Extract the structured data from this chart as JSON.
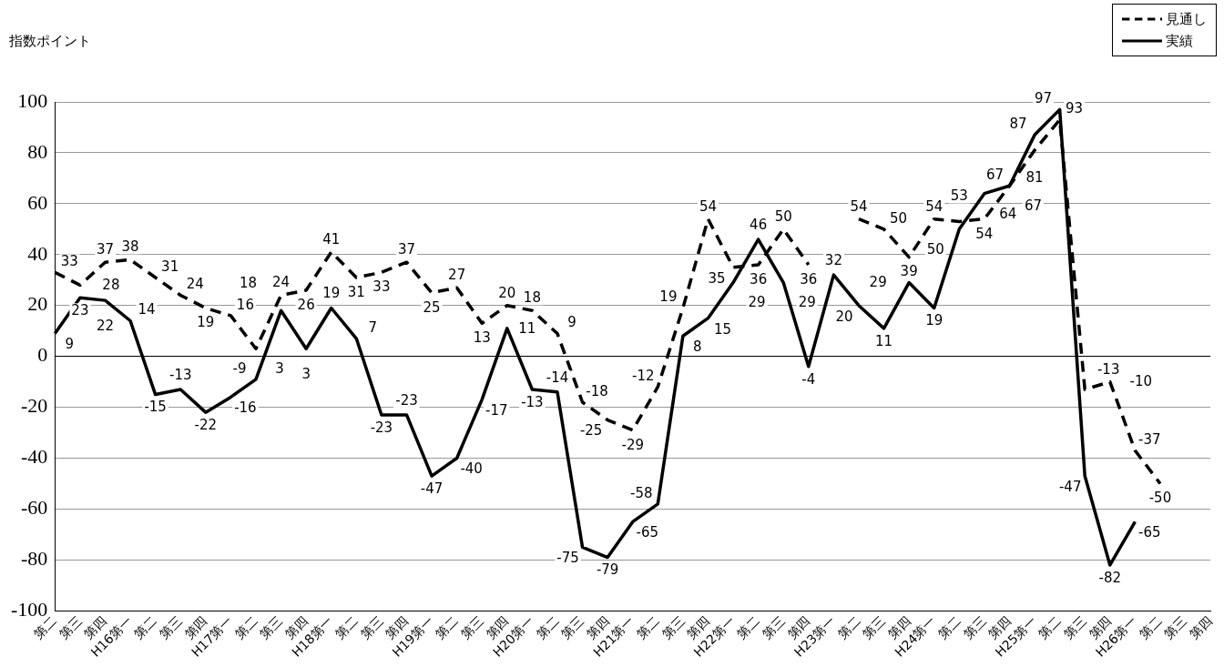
{
  "chart_data": {
    "type": "line",
    "ylabel": "指数ポイント",
    "categories": [
      "第二",
      "第三",
      "第四",
      "H16第一",
      "第二",
      "第三",
      "第四",
      "H17第一",
      "第二",
      "第三",
      "第四",
      "H18第一",
      "第二",
      "第三",
      "第四",
      "H19第一",
      "第二",
      "第三",
      "第四",
      "H20第一",
      "第二",
      "第三",
      "第四",
      "H21第一",
      "第二",
      "第三",
      "第四",
      "H22第一",
      "第二",
      "第三",
      "第四",
      "H23第一",
      "第二",
      "第三",
      "第四",
      "H24第一",
      "第二",
      "第三",
      "第四",
      "H25第一",
      "第二",
      "第三",
      "第四",
      "H26第一",
      "第二",
      "第三",
      "第四"
    ],
    "series": [
      {
        "name": "見通し",
        "color": "#000000",
        "line_style": "dashed",
        "values": [
          33,
          28,
          37,
          38,
          31,
          24,
          19,
          16,
          3,
          24,
          26,
          41,
          31,
          33,
          37,
          25,
          27,
          13,
          20,
          18,
          9,
          -18,
          -25,
          -29,
          -12,
          19,
          54,
          35,
          36,
          50,
          36,
          null,
          54,
          50,
          39,
          54,
          53,
          54,
          67,
          81,
          93,
          -13,
          -10,
          -37,
          -50,
          null,
          null
        ]
      },
      {
        "name": "実績",
        "color": "#000000",
        "line_style": "solid",
        "values": [
          9,
          23,
          22,
          14,
          -15,
          -13,
          -22,
          -16,
          -9,
          18,
          3,
          19,
          7,
          -23,
          -23,
          -47,
          -40,
          -17,
          11,
          -13,
          -14,
          -75,
          -79,
          -65,
          -58,
          8,
          15,
          29,
          46,
          29,
          -4,
          32,
          20,
          11,
          29,
          19,
          50,
          64,
          67,
          87,
          97,
          -47,
          -82,
          -65,
          null,
          null,
          null
        ]
      }
    ],
    "ylim": [
      -100,
      100
    ],
    "yticks": [
      -100,
      -80,
      -60,
      -40,
      -20,
      0,
      20,
      40,
      60,
      80,
      100
    ],
    "grid": "y",
    "legend": "top right",
    "marker": "none",
    "data_labels": true
  }
}
